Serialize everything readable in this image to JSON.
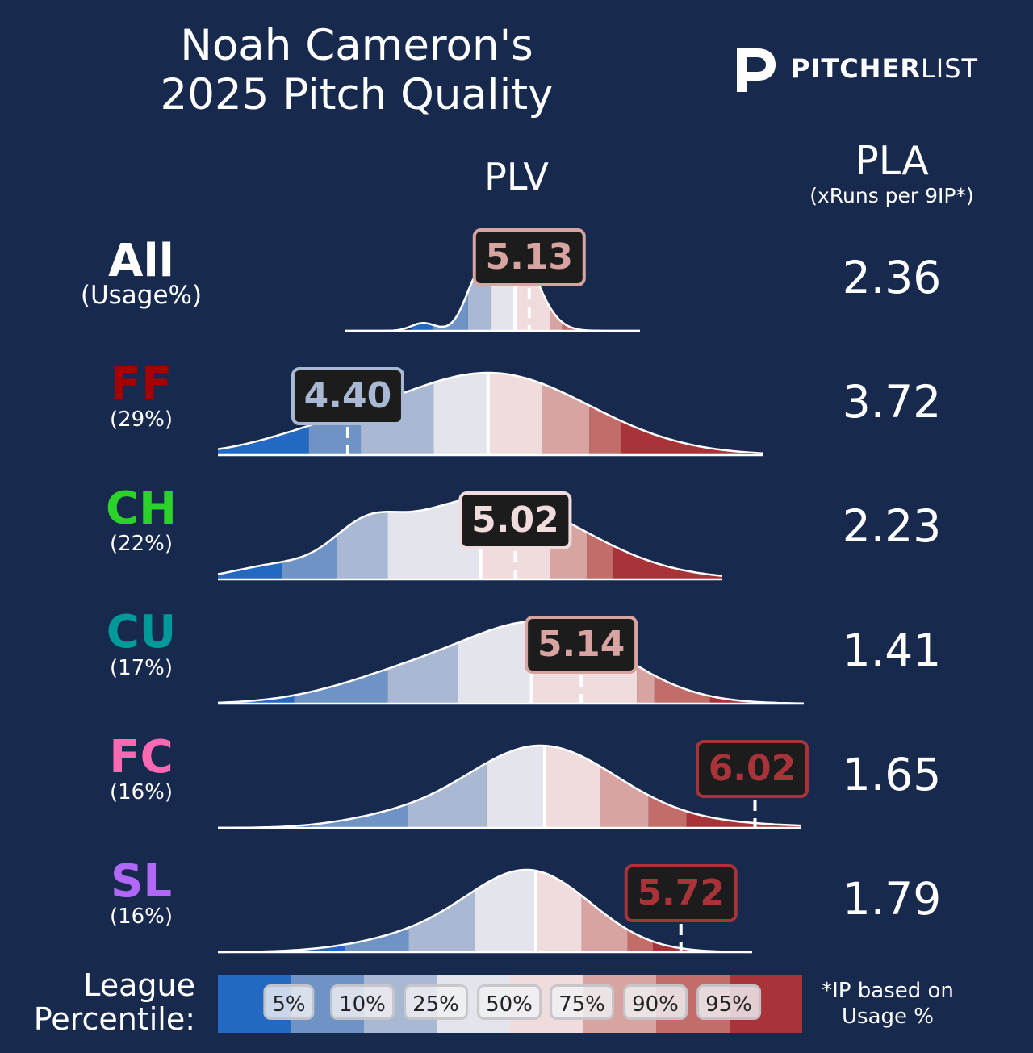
{
  "title_line1": "Noah Cameron's",
  "title_line2": "2025 Pitch Quality",
  "logo": {
    "bold": "PITCHER",
    "light": "LIST"
  },
  "headers": {
    "plv": "PLV",
    "pla": "PLA",
    "pla_sub": "(xRuns per 9IP*)"
  },
  "colors": {
    "background": "#172a4e",
    "percentile_bands": [
      "#2369c3",
      "#6f93c4",
      "#a9b9d3",
      "#e4e5ec",
      "#f0dcdc",
      "#d7a4a2",
      "#c26d69",
      "#a8343a"
    ],
    "pitch_colors": {
      "All": "#ffffff",
      "FF": "#a50000",
      "CH": "#2ad22a",
      "CU": "#00999a",
      "FC": "#ff69b4",
      "SL": "#b167f8"
    }
  },
  "chart_data": {
    "type": "area",
    "x_metric": "PLV",
    "rows": [
      {
        "pitch": "All",
        "usage": "(Usage%)",
        "plv": "5.13",
        "pla": "2.36",
        "label_color": "#ffffff",
        "box_text": "#d7a4a2",
        "box_border": "#d7a4a2",
        "x_range": [
          4.35,
          5.6
        ],
        "thresholds": [
          4.63,
          4.72,
          4.87,
          4.97,
          5.07,
          5.22,
          5.27,
          5.38
        ]
      },
      {
        "pitch": "FF",
        "usage": "(29%)",
        "plv": "4.40",
        "pla": "3.72",
        "label_color": "#a50000",
        "box_text": "#a9b9d3",
        "box_border": "#a9b9d3",
        "x_range": [
          3.9,
          6.0
        ],
        "thresholds": [
          3.9,
          4.25,
          4.45,
          4.73,
          4.94,
          5.15,
          5.33,
          5.45
        ]
      },
      {
        "pitch": "CH",
        "usage": "(22%)",
        "plv": "5.02",
        "pla": "2.23",
        "label_color": "#2ad22a",
        "box_text": "#f0dcdc",
        "box_border": "#f0dcdc",
        "x_range": [
          3.9,
          5.8
        ],
        "thresholds": [
          3.9,
          4.14,
          4.35,
          4.54,
          4.89,
          5.15,
          5.29,
          5.39
        ]
      },
      {
        "pitch": "CU",
        "usage": "(17%)",
        "plv": "5.14",
        "pla": "1.41",
        "label_color": "#00999a",
        "box_text": "#d7a4a2",
        "box_border": "#d7a4a2",
        "x_range": [
          3.9,
          5.9
        ],
        "thresholds": [
          3.9,
          4.16,
          4.48,
          4.72,
          4.97,
          5.33,
          5.39,
          5.58
        ]
      },
      {
        "pitch": "FC",
        "usage": "(16%)",
        "plv": "6.02",
        "pla": "1.65",
        "label_color": "#ff69b4",
        "box_text": "#a8343a",
        "box_border": "#a8343a",
        "x_range": [
          3.9,
          6.2
        ],
        "thresholds": [
          3.9,
          4.27,
          4.65,
          4.96,
          5.19,
          5.41,
          5.6,
          5.75
        ]
      },
      {
        "pitch": "SL",
        "usage": "(16%)",
        "plv": "5.72",
        "pla": "1.79",
        "label_color": "#b167f8",
        "box_text": "#a8343a",
        "box_border": "#a8343a",
        "x_range": [
          3.9,
          6.0
        ],
        "thresholds": [
          3.9,
          4.4,
          4.65,
          4.91,
          5.15,
          5.33,
          5.51,
          5.61
        ]
      }
    ]
  },
  "legend": {
    "label_line1": "League",
    "label_line2": "Percentile:",
    "percentiles": [
      "5%",
      "10%",
      "25%",
      "50%",
      "75%",
      "90%",
      "95%"
    ],
    "note_line1": "*IP based on",
    "note_line2": "Usage %"
  }
}
